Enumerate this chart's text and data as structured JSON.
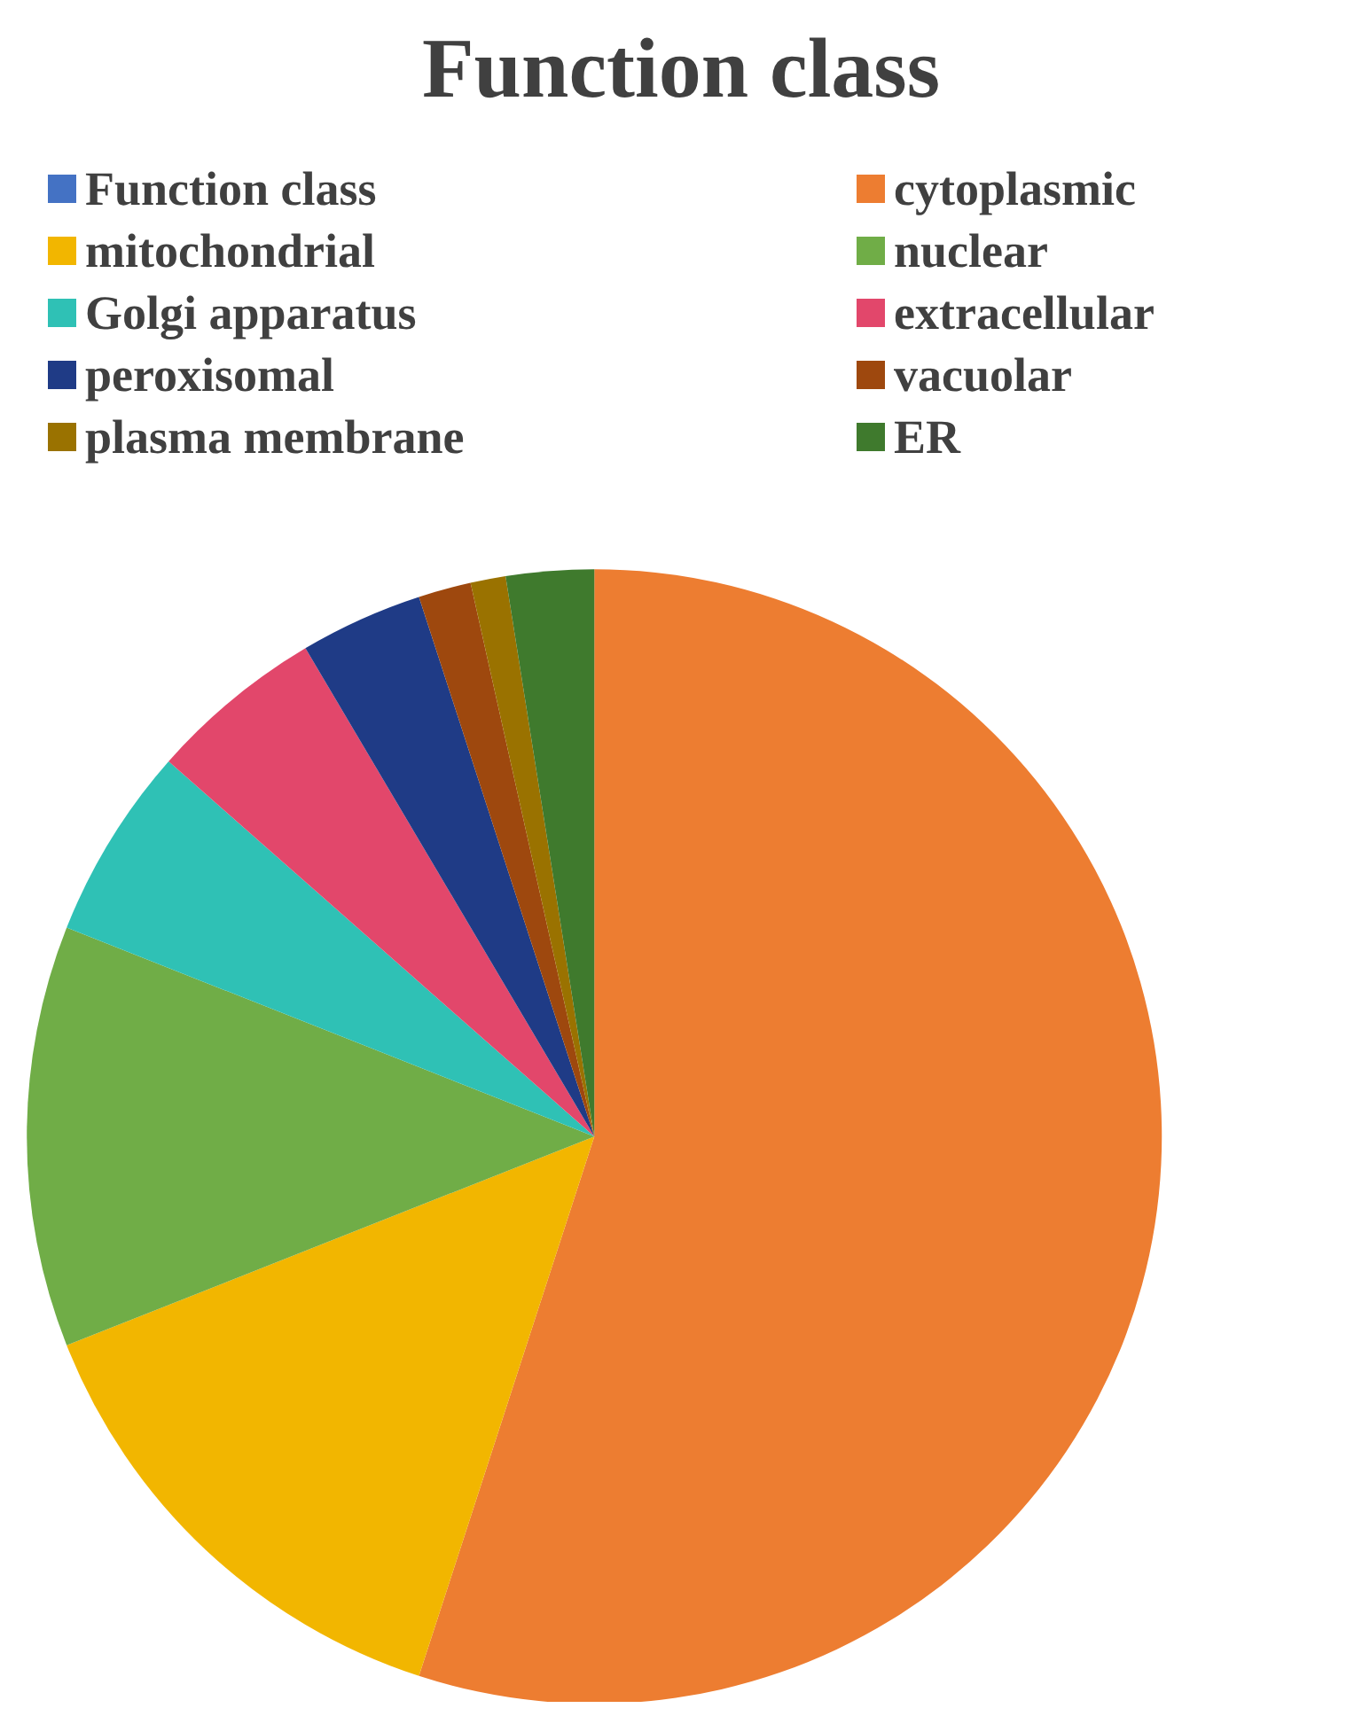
{
  "chart_data": {
    "type": "pie",
    "title": "Function class",
    "legend": "top",
    "categories": [
      "Function class",
      "cytoplasmic",
      "mitochondrial",
      "nuclear",
      "Golgi apparatus",
      "extracellular",
      "peroxisomal",
      "vacuolar",
      "plasma membrane",
      "ER"
    ],
    "values": [
      0,
      55,
      14,
      12,
      5.5,
      5,
      3.5,
      1.5,
      1,
      2.5
    ],
    "colors": [
      "#4472c4",
      "#ed7d31",
      "#f2b600",
      "#70ad47",
      "#2fc1b5",
      "#e2476b",
      "#1f3b86",
      "#9e480e",
      "#9a7200",
      "#3f7a2d"
    ]
  }
}
